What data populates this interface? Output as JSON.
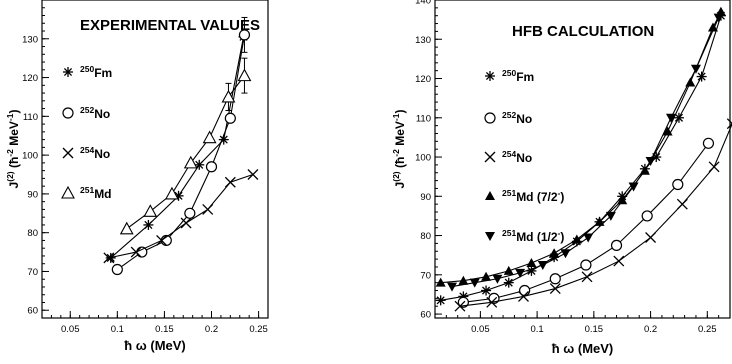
{
  "chart_data": [
    {
      "type": "line",
      "title": "EXPERIMENTAL VALUES",
      "xlabel": "ħ ω (MeV)",
      "ylabel": "J(2) (ħ-2 MeV-1)",
      "xlim": [
        0.02,
        0.26
      ],
      "ylim": [
        58,
        140
      ],
      "x_ticks": [
        0.05,
        0.1,
        0.15,
        0.2,
        0.25
      ],
      "x_tick_labels": [
        "0.05",
        "0.1",
        "0.15",
        "0.2",
        "0.25"
      ],
      "y_ticks": [
        60,
        70,
        80,
        90,
        100,
        110,
        120,
        130
      ],
      "y_tick_labels": [
        "60",
        "70",
        "80",
        "90",
        "100",
        "110",
        "120",
        "130"
      ],
      "grid": false,
      "legend_position": "left",
      "series": [
        {
          "name": "250Fm",
          "mass": "250",
          "element": "Fm",
          "marker": "asterisk",
          "x": [
            0.093,
            0.133,
            0.165,
            0.187,
            0.213,
            0.234
          ],
          "y": [
            73.5,
            82.0,
            89.5,
            97.5,
            104.0,
            130.5
          ]
        },
        {
          "name": "252No",
          "mass": "252",
          "element": "No",
          "marker": "circle",
          "x": [
            0.1,
            0.126,
            0.152,
            0.177,
            0.2,
            0.22,
            0.235
          ],
          "y": [
            70.5,
            75.0,
            78.0,
            85.0,
            97.0,
            109.5,
            131.0
          ],
          "errors": [
            0,
            0,
            0,
            0,
            0,
            0,
            4.5
          ]
        },
        {
          "name": "254No",
          "mass": "254",
          "element": "No",
          "marker": "cross",
          "x": [
            0.091,
            0.12,
            0.147,
            0.173,
            0.196,
            0.22,
            0.244
          ],
          "y": [
            73.5,
            75.0,
            78.0,
            82.5,
            86.0,
            93.0,
            95.0
          ]
        },
        {
          "name": "251Md",
          "mass": "251",
          "element": "Md",
          "marker": "triangle-open",
          "x": [
            0.11,
            0.135,
            0.158,
            0.178,
            0.198,
            0.218,
            0.235
          ],
          "y": [
            81.0,
            85.5,
            90.0,
            98.0,
            104.5,
            115.0,
            120.5
          ],
          "errors": [
            0,
            0,
            0,
            0,
            0,
            3.5,
            4.5
          ]
        }
      ]
    },
    {
      "type": "line",
      "title": "HFB CALCULATION",
      "xlabel": "ħ ω (MeV)",
      "ylabel": "J(2) (ħ-2 MeV-1)",
      "xlim": [
        0.01,
        0.27
      ],
      "ylim": [
        59,
        140
      ],
      "x_ticks": [
        0.05,
        0.1,
        0.15,
        0.2,
        0.25
      ],
      "x_tick_labels": [
        "0.05",
        "0.1",
        "0.15",
        "0.2",
        "0.25"
      ],
      "y_ticks": [
        60,
        70,
        80,
        90,
        100,
        110,
        120,
        130,
        140
      ],
      "y_tick_labels": [
        "60",
        "70",
        "80",
        "90",
        "100",
        "110",
        "120",
        "130",
        "140"
      ],
      "grid": false,
      "legend_position": "left",
      "series": [
        {
          "name": "250Fm",
          "mass": "250",
          "element": "Fm",
          "label_suffix": "",
          "marker": "asterisk",
          "x": [
            0.015,
            0.035,
            0.055,
            0.075,
            0.095,
            0.115,
            0.135,
            0.155,
            0.175,
            0.195,
            0.205,
            0.225,
            0.245,
            0.262
          ],
          "y": [
            63.5,
            64.5,
            66.0,
            68.0,
            71.0,
            74.5,
            78.5,
            83.5,
            90.0,
            97.0,
            100.0,
            110.0,
            120.5,
            136.0
          ]
        },
        {
          "name": "252No",
          "mass": "252",
          "element": "No",
          "label_suffix": "",
          "marker": "circle",
          "x": [
            0.035,
            0.062,
            0.089,
            0.116,
            0.143,
            0.17,
            0.197,
            0.224,
            0.251
          ],
          "y": [
            63.0,
            64.0,
            66.0,
            69.0,
            72.5,
            77.5,
            85.0,
            93.0,
            103.5
          ]
        },
        {
          "name": "254No",
          "mass": "254",
          "element": "No",
          "label_suffix": "",
          "marker": "cross",
          "x": [
            0.032,
            0.06,
            0.088,
            0.116,
            0.144,
            0.172,
            0.2,
            0.228,
            0.256,
            0.272
          ],
          "y": [
            62.0,
            63.0,
            64.5,
            66.5,
            69.5,
            73.5,
            79.5,
            88.0,
            97.5,
            108.5
          ]
        },
        {
          "name": "251Md (7/2-)",
          "mass": "251",
          "element": "Md",
          "label_suffix": " (7/2",
          "label_sup": "-",
          "label_end": ")",
          "marker": "triangle-up-filled",
          "x": [
            0.015,
            0.035,
            0.055,
            0.075,
            0.095,
            0.115,
            0.135,
            0.155,
            0.175,
            0.195,
            0.215,
            0.235,
            0.255,
            0.262
          ],
          "y": [
            68.0,
            68.5,
            69.5,
            71.0,
            73.0,
            75.5,
            79.0,
            83.5,
            89.0,
            96.5,
            106.5,
            119.0,
            133.0,
            137.0
          ]
        },
        {
          "name": "251Md (1/2-)",
          "mass": "251",
          "element": "Md",
          "label_suffix": " (1/2",
          "label_sup": "-",
          "label_end": ")",
          "marker": "triangle-down-filled",
          "x": [
            0.025,
            0.045,
            0.065,
            0.085,
            0.105,
            0.125,
            0.145,
            0.165,
            0.185,
            0.2,
            0.218,
            0.24,
            0.26
          ],
          "y": [
            67.0,
            68.0,
            69.0,
            70.5,
            72.5,
            75.5,
            79.5,
            85.0,
            92.5,
            99.0,
            110.0,
            122.5,
            135.5
          ]
        }
      ]
    }
  ]
}
